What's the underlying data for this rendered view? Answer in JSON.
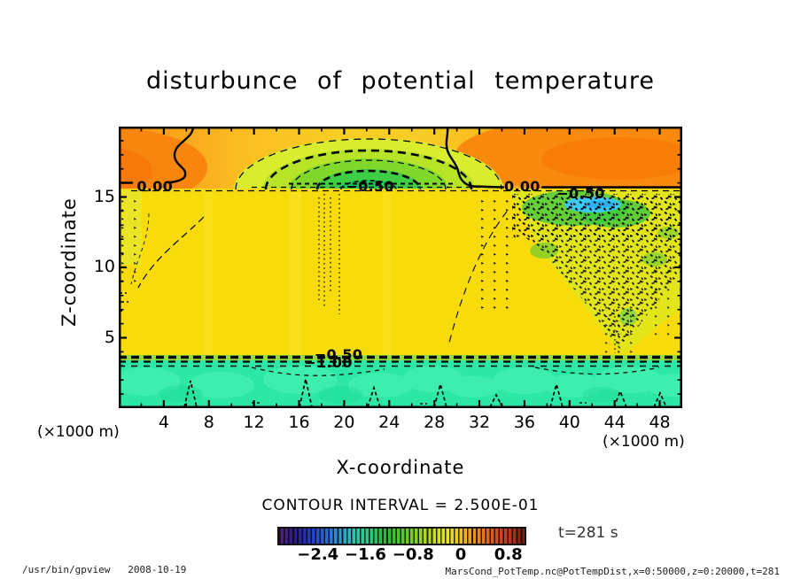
{
  "title": "disturbunce of potential temperature",
  "axes": {
    "x": {
      "title": "X-coordinate",
      "unit": "(×1000 m)",
      "ticks": [
        4,
        8,
        12,
        16,
        20,
        24,
        28,
        32,
        36,
        40,
        44,
        48
      ],
      "range": [
        0,
        50
      ]
    },
    "z": {
      "title": "Z-coordinate",
      "unit": "(×1000 m)",
      "ticks": [
        5,
        10,
        15
      ],
      "range": [
        0,
        20
      ]
    }
  },
  "contour_interval_text": "CONTOUR INTERVAL = 2.500E-01",
  "time_label": "t=281 s",
  "colorbar": {
    "ticks": [
      {
        "v": -2.4,
        "label": "−2.4"
      },
      {
        "v": -1.6,
        "label": "−1.6"
      },
      {
        "v": -0.8,
        "label": "−0.8"
      },
      {
        "v": 0,
        "label": "0"
      },
      {
        "v": 0.8,
        "label": "0.8"
      }
    ],
    "stops": [
      "#55207E",
      "#2A1C8E",
      "#2338C4",
      "#2A64D8",
      "#2BA0D8",
      "#2BC8AC",
      "#2CC876",
      "#2CBA2C",
      "#52C828",
      "#8CD228",
      "#C4DC20",
      "#E8E428",
      "#F2BA20",
      "#EC8420",
      "#D85420",
      "#C23418",
      "#7E1C10"
    ]
  },
  "footer": {
    "left": "/usr/bin/gpview   2008-10-19",
    "right": "MarsCond_PotTemp.nc@PotTempDist,x=0:50000,z=0:20000,t=281"
  },
  "chart_data": {
    "type": "contour",
    "title": "disturbunce of potential temperature",
    "xlabel": "X-coordinate (×1000 m)",
    "ylabel": "Z-coordinate (×1000 m)",
    "x_range": [
      0,
      50
    ],
    "z_range": [
      0,
      20
    ],
    "x_ticks": [
      4,
      8,
      12,
      16,
      20,
      24,
      28,
      32,
      36,
      40,
      44,
      48
    ],
    "z_ticks": [
      5,
      10,
      15
    ],
    "contour_interval": 0.25,
    "contour_interval_label": "CONTOUR INTERVAL = 2.500E-01",
    "labeled_contours": [
      {
        "label": "0.00",
        "level": 0.0,
        "x": 3.2,
        "z": 15.7
      },
      {
        "label": "−0.50",
        "level": -0.5,
        "x": 22.3,
        "z": 15.7
      },
      {
        "label": "0.00",
        "level": 0.0,
        "x": 35.8,
        "z": 15.7
      },
      {
        "label": "−0.50",
        "level": -0.5,
        "x": 41.0,
        "z": 15.2
      },
      {
        "label": "−0.50",
        "level": -0.5,
        "x": 19.5,
        "z": 3.8
      },
      {
        "label": "−1.00",
        "level": -1.0,
        "x": 18.6,
        "z": 3.2
      }
    ],
    "colorbar_ticks": [
      -2.4,
      -1.6,
      -0.8,
      0,
      0.8
    ],
    "colorbar_approx_range": [
      -3.1,
      1.0
    ],
    "time": "t=281 s",
    "features": [
      "Positive (orange) band above z≈16 across the full width, strongest at far left and over x≈30–50",
      "Negative green dome (dashed contours, min ≈ −1.5) centered near x≈22 between z≈16 and z≈19.5",
      "Solid 0.00 contours descend from the top near x≈6.6 and x≈29 and run along z≈15.7",
      "Broad weakly-negative yellow interior for z≈4–16",
      "Dense speckled negative perturbations over x≈33–50, z≈8–15.5 with small green/cyan minima near x≈42, z≈15",
      "Strong negative layer at z≈3.2–3.8 (levels −0.50 and −1.00) above a cyan region (≈ −2 to −2.5) below z≈3.2",
      "Small dashed peaks rise from the surface near x≈6.5, 16.5, 22.5, 28.5, 33.5, 39, 44.5, 48"
    ]
  }
}
